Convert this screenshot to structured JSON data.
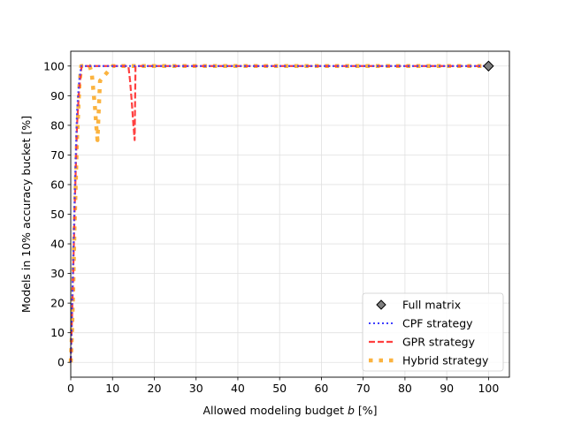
{
  "chart_data": {
    "type": "line",
    "xlabel": "Allowed modeling budget",
    "xlabel_var": "b",
    "xlabel_unit": "[%]",
    "ylabel": "Models in 10% accuracy bucket [%]",
    "xlim": [
      0,
      105
    ],
    "ylim": [
      -5,
      105
    ],
    "xticks": [
      0,
      10,
      20,
      30,
      40,
      50,
      60,
      70,
      80,
      90,
      100
    ],
    "yticks": [
      0,
      10,
      20,
      30,
      40,
      50,
      60,
      70,
      80,
      90,
      100
    ],
    "grid": true,
    "legend_position": "lower-right",
    "series": [
      {
        "name": "Full matrix",
        "style": "marker",
        "color": "#7f7f7f",
        "x": [
          100
        ],
        "y": [
          100
        ]
      },
      {
        "name": "CPF strategy",
        "style": "dotted",
        "color": "#3f3fff",
        "x": [
          0,
          0.5,
          1.0,
          1.5,
          2.0,
          2.5,
          4,
          10,
          20,
          40,
          60,
          80,
          100
        ],
        "y": [
          0,
          30,
          60,
          85,
          95,
          100,
          100,
          100,
          100,
          100,
          100,
          100,
          100
        ]
      },
      {
        "name": "GPR strategy",
        "style": "dashed",
        "color": "#ff4040",
        "x": [
          0,
          0.5,
          1.0,
          1.5,
          2.0,
          2.6,
          5,
          10,
          13.8,
          14.2,
          14.6,
          15.0,
          15.3,
          15.5,
          16,
          20,
          40,
          60,
          80,
          100
        ],
        "y": [
          0,
          25,
          55,
          80,
          92,
          100,
          100,
          100,
          100,
          95,
          88,
          80,
          75,
          100,
          100,
          100,
          100,
          100,
          100,
          100
        ]
      },
      {
        "name": "Hybrid strategy",
        "style": "square-dash",
        "color": "#fbb33f",
        "x": [
          0,
          0.3,
          0.6,
          0.9,
          1.2,
          1.5,
          1.8,
          2.1,
          2.5,
          3.5,
          4.5,
          5.0,
          5.4,
          5.8,
          6.1,
          6.4,
          6.7,
          7.0,
          10,
          20,
          40,
          60,
          80,
          100
        ],
        "y": [
          0,
          10,
          25,
          45,
          60,
          75,
          85,
          94,
          100,
          100,
          100,
          98,
          92,
          86,
          80,
          75,
          85,
          95,
          100,
          100,
          100,
          100,
          100,
          100
        ]
      }
    ]
  }
}
